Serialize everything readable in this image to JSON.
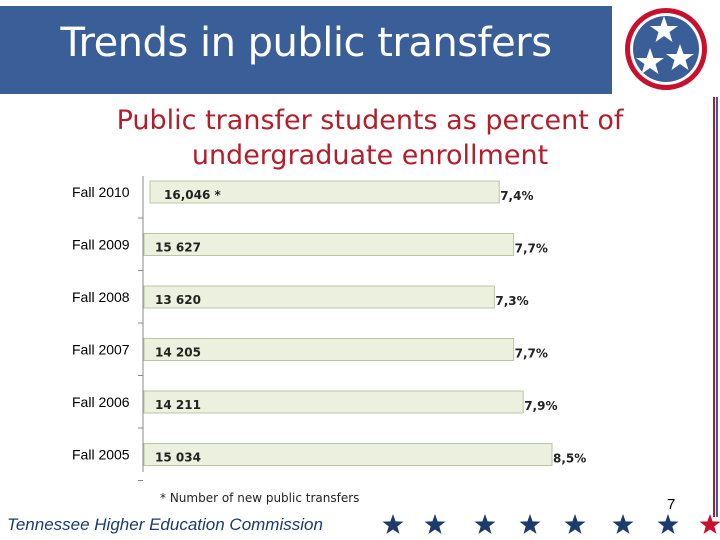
{
  "slide": {
    "title": "Trends in public transfers",
    "footnote": "* Number of new public transfers",
    "footer": "Tennessee Higher Education Commission",
    "page_number": "7"
  },
  "colors": {
    "title_band": "#3a5f98",
    "chart_title": "#b0202c",
    "bar_fill": "#ebf1de",
    "bar_stroke": "#b9c7a4",
    "footer_text": "#1d3a6e",
    "star_navy": "#1d3a6e",
    "star_red": "#c8102e"
  },
  "chart_data": {
    "type": "bar",
    "orientation": "horizontal",
    "title": "Public transfer students as percent of undergraduate enrollment",
    "categories": [
      "Fall 2010",
      "Fall 2009",
      "Fall 2008",
      "Fall 2007",
      "Fall 2006",
      "Fall 2005"
    ],
    "values": [
      7.4,
      7.7,
      7.3,
      7.7,
      7.9,
      8.5
    ],
    "value_labels": [
      "7,4%",
      "7,7%",
      "7,3%",
      "7,7%",
      "7,9%",
      "8,5%"
    ],
    "counts": [
      "16,046 *",
      "15 627",
      "13 620",
      "14 205",
      "14 211",
      "15 034"
    ],
    "xlim": [
      0,
      8.5
    ],
    "grid": false,
    "legend": "none"
  }
}
